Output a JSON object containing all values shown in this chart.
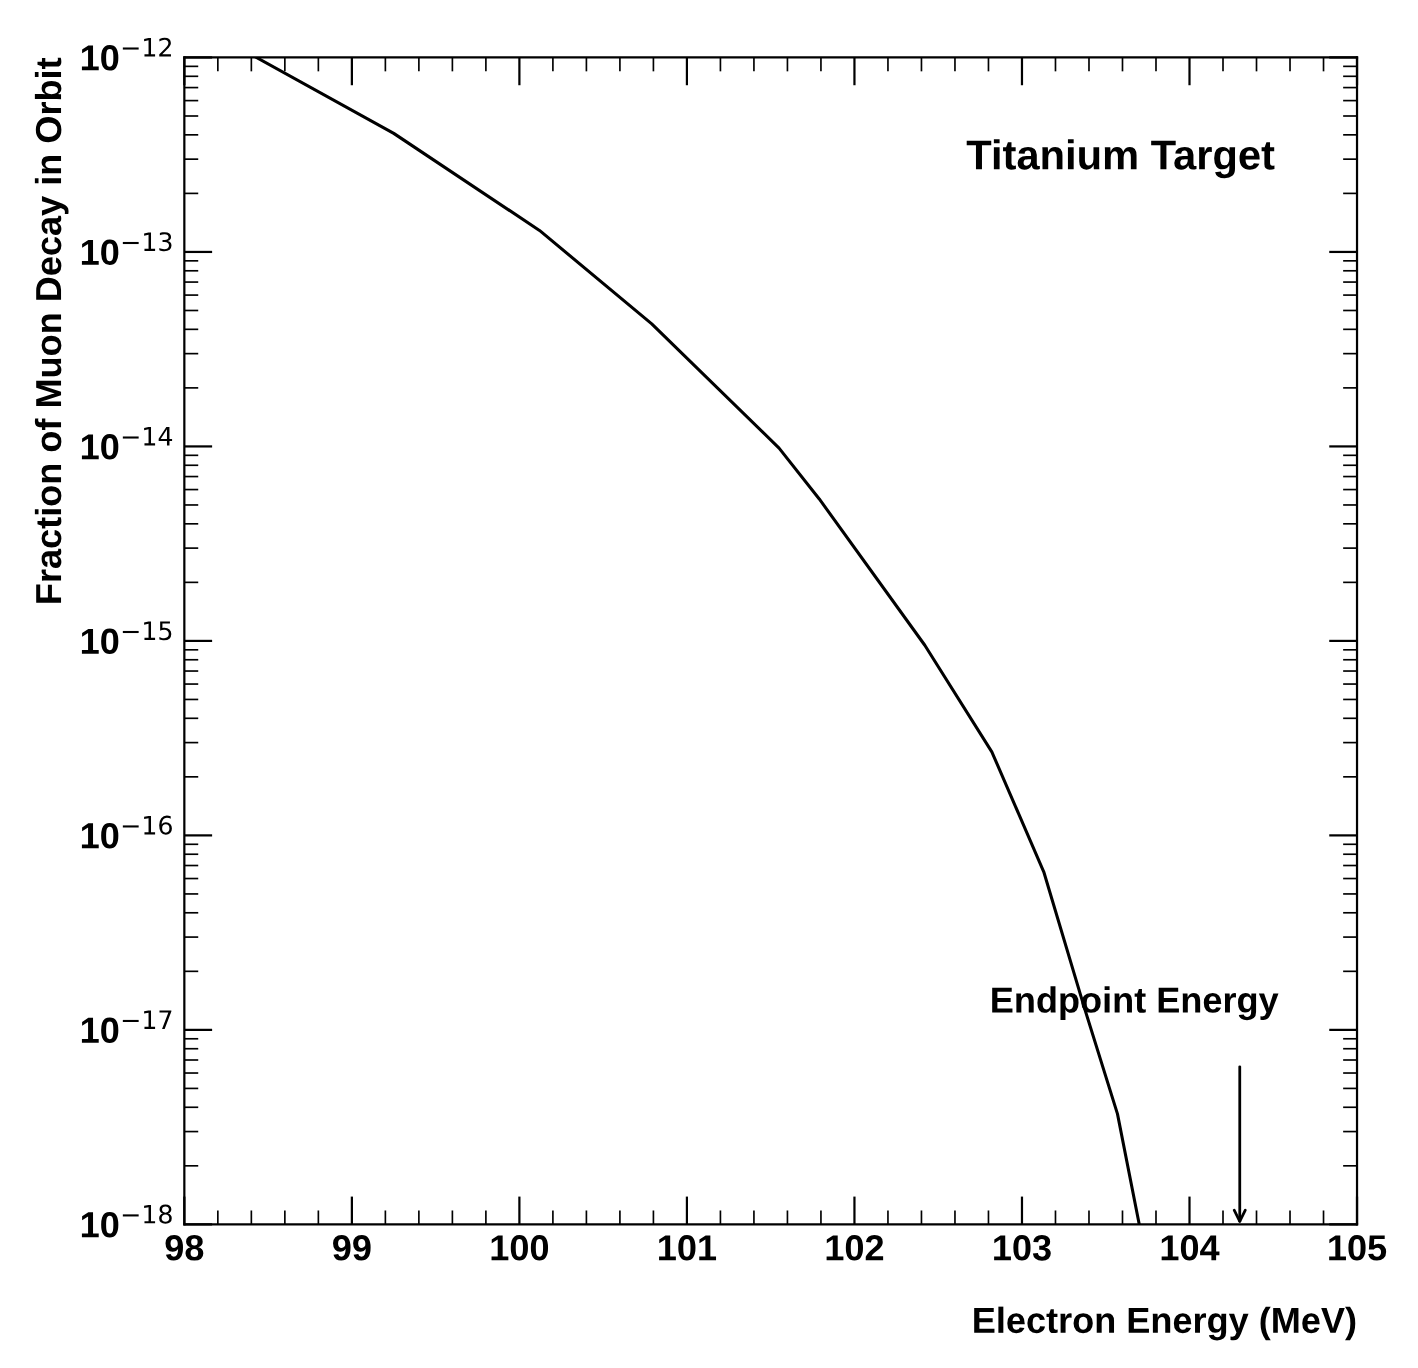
{
  "chart_data": {
    "type": "line",
    "xlabel": "Electron Energy (MeV)",
    "ylabel": "Fraction of Muon Decay in Orbit",
    "x": [
      98.43,
      99.25,
      100.12,
      100.79,
      101.55,
      101.79,
      102.42,
      102.82,
      103.13,
      103.37,
      103.57,
      103.7
    ],
    "series": [
      {
        "color": "#000000",
        "values": [
          1e-12,
          4.07e-13,
          1.29e-13,
          4.27e-14,
          9.8e-15,
          5.37e-15,
          9.5e-16,
          2.69e-16,
          6.5e-17,
          1.32e-17,
          3.7e-18,
          1e-18
        ]
      }
    ],
    "log": "y",
    "grid": false,
    "legend": false,
    "marker": "none",
    "line_style": "solid",
    "xlim": [
      98,
      105
    ],
    "xticks": [
      98,
      99,
      100,
      101,
      102,
      103,
      104,
      105
    ],
    "ylim": [
      1e-18,
      1e-12
    ],
    "yticks": [
      {
        "value": 1e-18,
        "label": "10$^{−18}$"
      },
      {
        "value": 1e-17,
        "label": "10$^{−17}$"
      },
      {
        "value": 1e-16,
        "label": "10$^{−16}$"
      },
      {
        "value": 1e-15,
        "label": "10$^{−15}$"
      },
      {
        "value": 1e-14,
        "label": "10$^{−14}$"
      },
      {
        "value": 1e-13,
        "label": "10$^{−13}$"
      },
      {
        "value": 1e-12,
        "label": "10$^{−12}$"
      }
    ],
    "annotations": [
      "Titanium Target",
      "Endpoint Energy"
    ]
  }
}
